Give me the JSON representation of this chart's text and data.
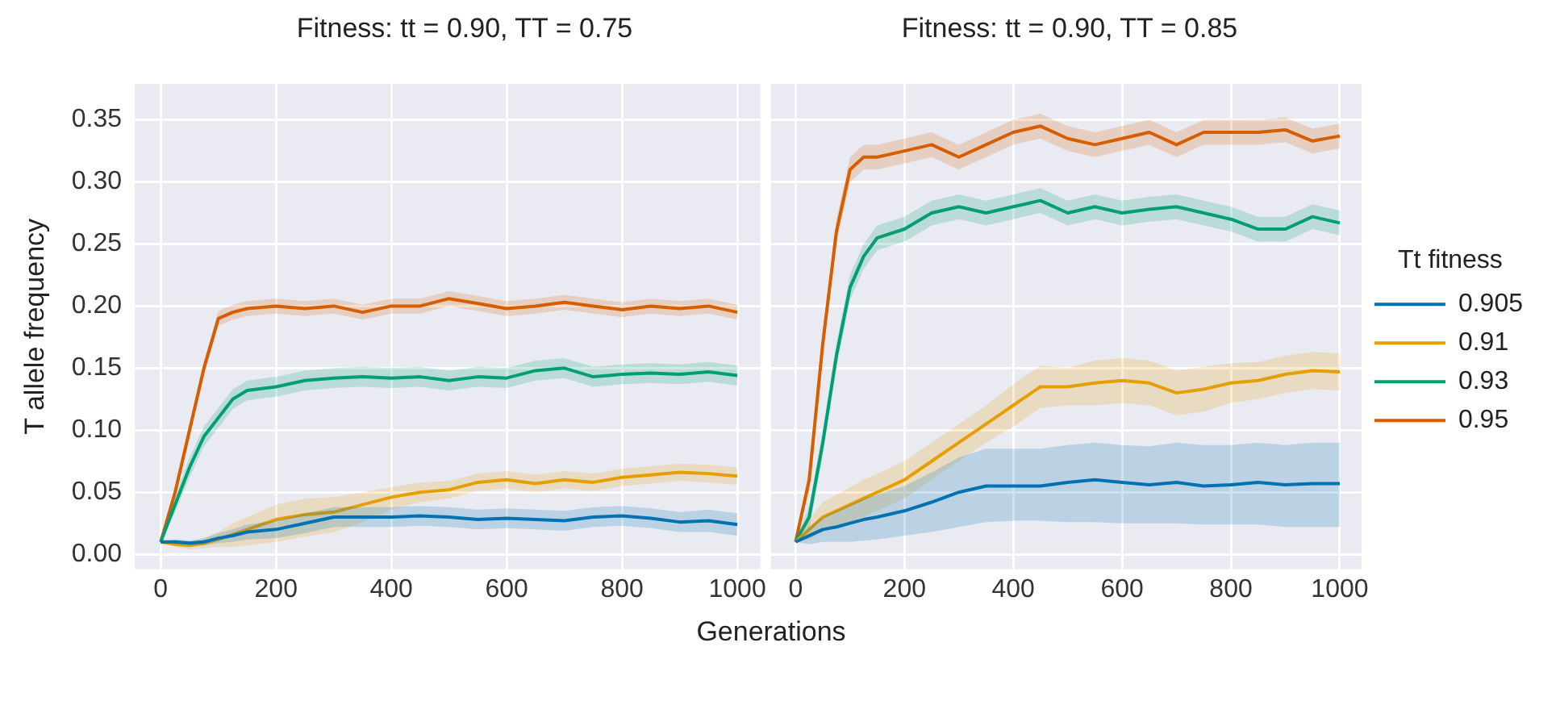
{
  "chart_data": [
    {
      "type": "line",
      "title": "Fitness: tt = 0.90, TT = 0.75",
      "xlabel": "Generations",
      "ylabel": "T allele frequency",
      "x": [
        0,
        25,
        50,
        75,
        100,
        125,
        150,
        200,
        250,
        300,
        350,
        400,
        450,
        500,
        550,
        600,
        650,
        700,
        750,
        800,
        850,
        900,
        950,
        1000
      ],
      "xlim": [
        -45,
        1040
      ],
      "xticks": [
        0,
        200,
        400,
        600,
        800,
        1000
      ],
      "ylim": [
        -0.012,
        0.379
      ],
      "yticks": [
        {
          "value": 0,
          "label": "0.00"
        },
        {
          "value": 0.05,
          "label": "0.05"
        },
        {
          "value": 0.1,
          "label": "0.10"
        },
        {
          "value": 0.15,
          "label": "0.15"
        },
        {
          "value": 0.2,
          "label": "0.20"
        },
        {
          "value": 0.25,
          "label": "0.25"
        },
        {
          "value": 0.3,
          "label": "0.30"
        },
        {
          "value": 0.35,
          "label": "0.35"
        }
      ],
      "grid": true,
      "legend": false,
      "series": [
        {
          "color": "#0072b2",
          "values": [
            0.01,
            0.01,
            0.009,
            0.01,
            0.013,
            0.015,
            0.018,
            0.02,
            0.025,
            0.03,
            0.03,
            0.03,
            0.031,
            0.03,
            0.028,
            0.029,
            0.028,
            0.027,
            0.03,
            0.031,
            0.029,
            0.026,
            0.027,
            0.024
          ],
          "lower": [
            0.01,
            0.008,
            0.007,
            0.007,
            0.009,
            0.01,
            0.012,
            0.013,
            0.017,
            0.022,
            0.022,
            0.022,
            0.023,
            0.022,
            0.02,
            0.021,
            0.02,
            0.019,
            0.022,
            0.023,
            0.021,
            0.018,
            0.018,
            0.015
          ],
          "upper": [
            0.01,
            0.012,
            0.011,
            0.013,
            0.017,
            0.02,
            0.024,
            0.027,
            0.033,
            0.038,
            0.038,
            0.038,
            0.039,
            0.038,
            0.036,
            0.037,
            0.036,
            0.035,
            0.038,
            0.039,
            0.037,
            0.034,
            0.036,
            0.033
          ]
        },
        {
          "color": "#e69f00",
          "values": [
            0.01,
            0.008,
            0.007,
            0.009,
            0.012,
            0.016,
            0.02,
            0.028,
            0.032,
            0.034,
            0.04,
            0.046,
            0.05,
            0.052,
            0.058,
            0.06,
            0.057,
            0.06,
            0.058,
            0.062,
            0.064,
            0.066,
            0.065,
            0.063
          ],
          "lower": [
            0.01,
            0.006,
            0.004,
            0.005,
            0.006,
            0.006,
            0.007,
            0.01,
            0.014,
            0.018,
            0.026,
            0.036,
            0.042,
            0.045,
            0.051,
            0.053,
            0.05,
            0.053,
            0.051,
            0.055,
            0.057,
            0.059,
            0.058,
            0.056
          ],
          "upper": [
            0.01,
            0.01,
            0.01,
            0.013,
            0.018,
            0.025,
            0.03,
            0.04,
            0.045,
            0.046,
            0.05,
            0.054,
            0.058,
            0.059,
            0.065,
            0.067,
            0.064,
            0.067,
            0.065,
            0.069,
            0.071,
            0.073,
            0.072,
            0.07
          ]
        },
        {
          "color": "#009e73",
          "values": [
            0.01,
            0.04,
            0.07,
            0.095,
            0.11,
            0.125,
            0.132,
            0.135,
            0.14,
            0.142,
            0.143,
            0.142,
            0.143,
            0.14,
            0.143,
            0.142,
            0.148,
            0.15,
            0.143,
            0.145,
            0.146,
            0.145,
            0.147,
            0.144
          ],
          "lower": [
            0.01,
            0.034,
            0.062,
            0.087,
            0.102,
            0.117,
            0.124,
            0.127,
            0.132,
            0.134,
            0.135,
            0.134,
            0.135,
            0.132,
            0.135,
            0.134,
            0.14,
            0.142,
            0.135,
            0.137,
            0.138,
            0.137,
            0.139,
            0.136
          ],
          "upper": [
            0.01,
            0.046,
            0.078,
            0.103,
            0.118,
            0.133,
            0.14,
            0.143,
            0.148,
            0.15,
            0.151,
            0.15,
            0.151,
            0.148,
            0.151,
            0.15,
            0.156,
            0.158,
            0.151,
            0.153,
            0.154,
            0.153,
            0.155,
            0.152
          ]
        },
        {
          "color": "#d55e00",
          "values": [
            0.01,
            0.05,
            0.1,
            0.15,
            0.19,
            0.195,
            0.198,
            0.2,
            0.198,
            0.2,
            0.195,
            0.2,
            0.2,
            0.206,
            0.202,
            0.198,
            0.2,
            0.203,
            0.2,
            0.197,
            0.2,
            0.198,
            0.2,
            0.195
          ],
          "lower": [
            0.01,
            0.045,
            0.094,
            0.144,
            0.184,
            0.189,
            0.192,
            0.194,
            0.192,
            0.194,
            0.189,
            0.194,
            0.194,
            0.2,
            0.196,
            0.192,
            0.194,
            0.197,
            0.194,
            0.191,
            0.194,
            0.192,
            0.194,
            0.189
          ],
          "upper": [
            0.01,
            0.055,
            0.106,
            0.156,
            0.196,
            0.201,
            0.204,
            0.206,
            0.204,
            0.206,
            0.201,
            0.206,
            0.206,
            0.212,
            0.208,
            0.204,
            0.206,
            0.209,
            0.206,
            0.203,
            0.206,
            0.204,
            0.206,
            0.201
          ]
        }
      ]
    },
    {
      "type": "line",
      "title": "Fitness: tt = 0.90, TT = 0.85",
      "legend_title": "Tt fitness",
      "x": [
        0,
        25,
        50,
        75,
        100,
        125,
        150,
        200,
        250,
        300,
        350,
        400,
        450,
        500,
        550,
        600,
        650,
        700,
        750,
        800,
        850,
        900,
        950,
        1000
      ],
      "xlim": [
        -45,
        1040
      ],
      "xticks": [
        0,
        200,
        400,
        600,
        800,
        1000
      ],
      "ylim": [
        -0.012,
        0.379
      ],
      "grid": true,
      "legend": "right",
      "tick_labels": "x",
      "yticks": [
        0,
        0.05,
        0.1,
        0.15,
        0.2,
        0.25,
        0.3,
        0.35
      ],
      "series": [
        {
          "name": "0.905",
          "color": "#0072b2",
          "values": [
            0.01,
            0.015,
            0.02,
            0.022,
            0.025,
            0.028,
            0.03,
            0.035,
            0.042,
            0.05,
            0.055,
            0.055,
            0.055,
            0.058,
            0.06,
            0.058,
            0.056,
            0.058,
            0.055,
            0.056,
            0.058,
            0.056,
            0.057,
            0.057
          ],
          "lower": [
            0.01,
            0.008,
            0.01,
            0.01,
            0.01,
            0.011,
            0.012,
            0.015,
            0.018,
            0.022,
            0.026,
            0.027,
            0.027,
            0.026,
            0.026,
            0.025,
            0.025,
            0.025,
            0.024,
            0.024,
            0.024,
            0.022,
            0.022,
            0.022
          ],
          "upper": [
            0.01,
            0.022,
            0.03,
            0.035,
            0.04,
            0.045,
            0.048,
            0.055,
            0.066,
            0.078,
            0.085,
            0.085,
            0.085,
            0.088,
            0.09,
            0.088,
            0.087,
            0.09,
            0.088,
            0.088,
            0.09,
            0.088,
            0.09,
            0.09
          ]
        },
        {
          "name": "0.91",
          "color": "#e69f00",
          "values": [
            0.01,
            0.02,
            0.03,
            0.035,
            0.04,
            0.045,
            0.05,
            0.06,
            0.075,
            0.09,
            0.105,
            0.12,
            0.135,
            0.135,
            0.138,
            0.14,
            0.138,
            0.13,
            0.133,
            0.138,
            0.14,
            0.145,
            0.148,
            0.147
          ],
          "lower": [
            0.01,
            0.012,
            0.018,
            0.022,
            0.026,
            0.03,
            0.035,
            0.045,
            0.06,
            0.075,
            0.09,
            0.103,
            0.118,
            0.12,
            0.12,
            0.122,
            0.12,
            0.112,
            0.115,
            0.122,
            0.125,
            0.13,
            0.133,
            0.132
          ],
          "upper": [
            0.01,
            0.028,
            0.042,
            0.048,
            0.054,
            0.06,
            0.065,
            0.075,
            0.09,
            0.105,
            0.12,
            0.137,
            0.152,
            0.15,
            0.156,
            0.158,
            0.156,
            0.148,
            0.151,
            0.154,
            0.155,
            0.16,
            0.163,
            0.162
          ]
        },
        {
          "name": "0.93",
          "color": "#009e73",
          "values": [
            0.01,
            0.03,
            0.09,
            0.16,
            0.215,
            0.24,
            0.255,
            0.262,
            0.275,
            0.28,
            0.275,
            0.28,
            0.285,
            0.275,
            0.28,
            0.275,
            0.278,
            0.28,
            0.275,
            0.27,
            0.262,
            0.262,
            0.272,
            0.267
          ],
          "lower": [
            0.01,
            0.02,
            0.08,
            0.15,
            0.205,
            0.23,
            0.245,
            0.252,
            0.265,
            0.27,
            0.265,
            0.27,
            0.275,
            0.265,
            0.27,
            0.265,
            0.268,
            0.27,
            0.265,
            0.26,
            0.252,
            0.252,
            0.262,
            0.257
          ],
          "upper": [
            0.01,
            0.04,
            0.1,
            0.17,
            0.225,
            0.25,
            0.265,
            0.272,
            0.285,
            0.29,
            0.285,
            0.29,
            0.295,
            0.285,
            0.29,
            0.285,
            0.288,
            0.29,
            0.285,
            0.28,
            0.272,
            0.272,
            0.282,
            0.277
          ]
        },
        {
          "name": "0.95",
          "color": "#d55e00",
          "values": [
            0.01,
            0.06,
            0.17,
            0.26,
            0.31,
            0.32,
            0.32,
            0.325,
            0.33,
            0.32,
            0.33,
            0.34,
            0.345,
            0.335,
            0.33,
            0.335,
            0.34,
            0.33,
            0.34,
            0.34,
            0.34,
            0.342,
            0.333,
            0.337
          ],
          "lower": [
            0.01,
            0.05,
            0.16,
            0.25,
            0.3,
            0.31,
            0.31,
            0.315,
            0.32,
            0.31,
            0.32,
            0.33,
            0.335,
            0.325,
            0.32,
            0.325,
            0.33,
            0.32,
            0.33,
            0.33,
            0.33,
            0.332,
            0.323,
            0.327
          ],
          "upper": [
            0.01,
            0.07,
            0.18,
            0.27,
            0.32,
            0.33,
            0.33,
            0.335,
            0.34,
            0.33,
            0.34,
            0.35,
            0.355,
            0.345,
            0.34,
            0.345,
            0.35,
            0.34,
            0.35,
            0.35,
            0.35,
            0.352,
            0.343,
            0.347
          ]
        }
      ]
    }
  ]
}
